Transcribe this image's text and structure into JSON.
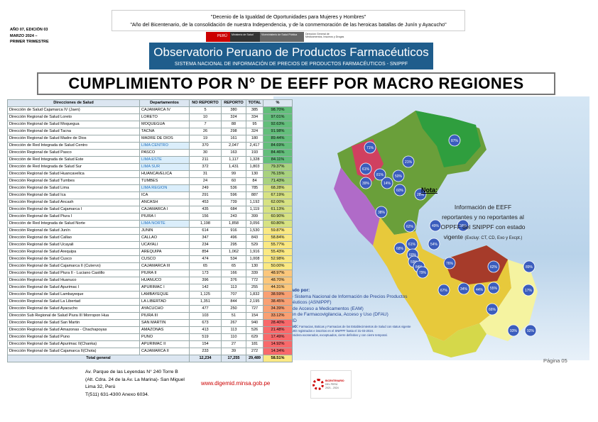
{
  "header": {
    "quote1": "\"Decenio de la Igualdad de Oportunidades para Mujeres y Hombres\"",
    "quote2": "\"Año del Bicentenario, de la consolidación de nuestra Independencia, y de la conmemoración de las heroicas batallas de Junín y Ayacucho\"",
    "edition": [
      "AÑO 07, EDICIÓN 03",
      "MARZO 2024 –",
      "PRIMER TRIMESTRE"
    ],
    "logo": [
      "PERÚ",
      "Ministerio de Salud",
      "Viceministerio de Salud Pública",
      "Dirección General de Medicamentos, Insumos y Drogas"
    ],
    "banner_title": "Observatorio Peruano de Productos Farmacéuticos",
    "banner_subtitle": "SISTEMA NACIONAL DE INFORMACIÓN DE PRECIOS DE PRODUCTOS FARMACÉUTICOS - SNIPPF"
  },
  "title": "CUMPLIMIENTO POR N° DE EEFF POR MACRO REGIONES",
  "table": {
    "columns": [
      "Direcciones de Salud",
      "Departamentos",
      "NO REPORTO",
      "REPORTO",
      "TOTAL",
      "%"
    ],
    "rows": [
      [
        "Dirección de Salud Cajamarca IV (Jaen)",
        "CAJAMARCA IV",
        "5",
        "380",
        "385",
        "98.70%"
      ],
      [
        "Dirección Regional de Salud Loreto",
        "LORETO",
        "10",
        "324",
        "334",
        "97.01%"
      ],
      [
        "Dirección Regional de Salud Moquegua",
        "MOQUEGUA",
        "7",
        "88",
        "95",
        "92.63%"
      ],
      [
        "Dirección Regional de Salud Tacna",
        "TACNA",
        "26",
        "298",
        "324",
        "91.98%"
      ],
      [
        "Dirección Regional de Salud Madre de Dios",
        "MADRE DE DIOS",
        "19",
        "161",
        "180",
        "89.44%"
      ],
      [
        "Dirección de Red Integrada de Salud Centro",
        "LIMA CENTRO",
        "370",
        "2,047",
        "2,417",
        "84.69%"
      ],
      [
        "Dirección Regional de Salud Pasco",
        "PASCO",
        "30",
        "163",
        "193",
        "84.46%"
      ],
      [
        "Dirección de Red Integrada de Salud Este",
        "LIMA ESTE",
        "211",
        "1,117",
        "1,328",
        "84.11%"
      ],
      [
        "Dirección de Red Integrada de Salud Sur",
        "LIMA SUR",
        "372",
        "1,431",
        "1,803",
        "79.37%"
      ],
      [
        "Dirección Regional de Salud Huancavelica",
        "HUANCAVELICA",
        "31",
        "99",
        "130",
        "76.15%"
      ],
      [
        "Dirección Regional de Salud Tumbes",
        "TUMBES",
        "24",
        "60",
        "84",
        "71.43%"
      ],
      [
        "Dirección Regional de Salud Lima",
        "LIMA REGION",
        "249",
        "536",
        "785",
        "68.28%"
      ],
      [
        "Dirección Regional de Salud Ica",
        "ICA",
        "291",
        "596",
        "887",
        "67.19%"
      ],
      [
        "Dirección Regional de Salud Ancash",
        "ANCASH",
        "453",
        "739",
        "1,192",
        "62.00%"
      ],
      [
        "Dirección Regional de Salud Cajamarca I",
        "CAJAMARCA I",
        "435",
        "684",
        "1,119",
        "61.13%"
      ],
      [
        "Dirección Regional de Salud Piura I",
        "PIURA I",
        "156",
        "243",
        "399",
        "60.90%"
      ],
      [
        "Dirección de Red Integrada de Salud Norte",
        "LIMA NORTE",
        "1,198",
        "1,858",
        "3,056",
        "60.80%"
      ],
      [
        "Dirección Regional de Salud Junín",
        "JUNIN",
        "614",
        "916",
        "1,530",
        "59.87%"
      ],
      [
        "Dirección Regional de Salud Callao",
        "CALLAO",
        "347",
        "496",
        "843",
        "58.84%"
      ],
      [
        "Dirección Regional de Salud Ucayali",
        "UCAYALI",
        "234",
        "295",
        "529",
        "55.77%"
      ],
      [
        "Dirección Regional de Salud Arequipa",
        "AREQUIPA",
        "854",
        "1,062",
        "1,916",
        "55.43%"
      ],
      [
        "Dirección Regional de Salud Cusco",
        "CUSCO",
        "474",
        "534",
        "1,008",
        "52.98%"
      ],
      [
        "Dirección Regional de Salud Cajamarca II (Cutervo)",
        "CAJAMARCA III",
        "65",
        "65",
        "130",
        "50.00%"
      ],
      [
        "Dirección Regional de Salud Piura II - Luciano Castillo",
        "PIURA II",
        "173",
        "166",
        "339",
        "48.97%"
      ],
      [
        "Dirección Regional de Salud Huanuco",
        "HUANUCO",
        "396",
        "376",
        "772",
        "48.70%"
      ],
      [
        "Dirección Regional de Salud Apurimac I",
        "APURIMAC I",
        "142",
        "113",
        "255",
        "44.31%"
      ],
      [
        "Dirección Regional de Salud Lambayeque",
        "LAMBAYEQUE",
        "1,125",
        "707",
        "1,832",
        "38.59%"
      ],
      [
        "Dirección Regional de Salud La Libertad",
        "LA LIBERTAD",
        "1,351",
        "844",
        "2,195",
        "38.45%"
      ],
      [
        "Dirección Regional de Salud Ayacucho",
        "AYACUCHO",
        "477",
        "250",
        "727",
        "34.39%"
      ],
      [
        "Dirección Sub Regional de Salud Piura III Morropon Hua",
        "PIURA III",
        "103",
        "51",
        "154",
        "33.12%"
      ],
      [
        "Dirección Regional de Salud San Martin",
        "SAN MARTIN",
        "673",
        "267",
        "940",
        "28.40%"
      ],
      [
        "Dirección Regional de Salud Amazonas - Chachapoyas",
        "AMAZONAS",
        "413",
        "113",
        "526",
        "21.48%"
      ],
      [
        "Dirección Regional de Salud Puno",
        "PUNO",
        "519",
        "110",
        "629",
        "17.49%"
      ],
      [
        "Dirección Regional de Salud Apurimac II(Chanka)",
        "APURIMAC II",
        "154",
        "27",
        "181",
        "14.92%"
      ],
      [
        "Dirección Regional de Salud Cajamarca II(Chota)",
        "CAJAMARCA II",
        "233",
        "39",
        "272",
        "14.34%"
      ]
    ],
    "total": [
      "Total general",
      "12,234",
      "17,255",
      "29,489",
      "58.51%"
    ]
  },
  "map_labels": [
    "71%",
    "87%",
    "61%",
    "21%",
    "81%",
    "50%",
    "14%",
    "39%",
    "60%",
    "28%",
    "38%",
    "62%",
    "49%",
    "56%",
    "61%",
    "54%",
    "68%",
    "60%",
    "59%",
    "84%",
    "79%",
    "76%",
    "62%",
    "89%",
    "67%",
    "34%",
    "44%",
    "55%",
    "17%",
    "66%",
    "93%",
    "92%"
  ],
  "note": {
    "heading": "Nota:",
    "lines": [
      "Información de EEFF",
      "reportantes y no reportantes al",
      "OPPFF del SNIPPF con estado",
      "vigente"
    ],
    "small": "(Excluy: CT, CD, Exo y Excpt.)"
  },
  "credits": {
    "heading": "Elaborado por:",
    "lines": [
      "Area de Sistema Nacional de Información de Precios Productos",
      "Farmacéuticos (ASNIPPF)",
      "Equipo de Acceso a Medicamentos (EAM)",
      "Dirección de Farmacovigilancia, Acceso y Uso (DFAU)",
      "DIGEMID"
    ],
    "universe_label": "Universo:",
    "universe": [
      "Farmacias, Boticas y Farmacias de los Establecimientos de Salud con status vigente",
      "en la DIGEMID registrados e inscritos en el SNIPPF hasta el 31-03-2024.",
      "** No se considera exonerados, exceptuados, cierre definitivo y con cierre temporal."
    ]
  },
  "footer": {
    "address": [
      "Av. Parque de las Leyendas N° 240 Torre B",
      "(Alt. Cdra. 24 de la Av. La Marina)- San Miguel",
      "Lima 32, Perú",
      "T(511) 631-4300  Anexo 6034."
    ],
    "url": "www.digemid.minsa.gob.pe",
    "bicentenario": [
      "BICENTENARIO",
      "DEL PERÚ",
      "2021 - 2024"
    ],
    "page": "Página 05"
  }
}
